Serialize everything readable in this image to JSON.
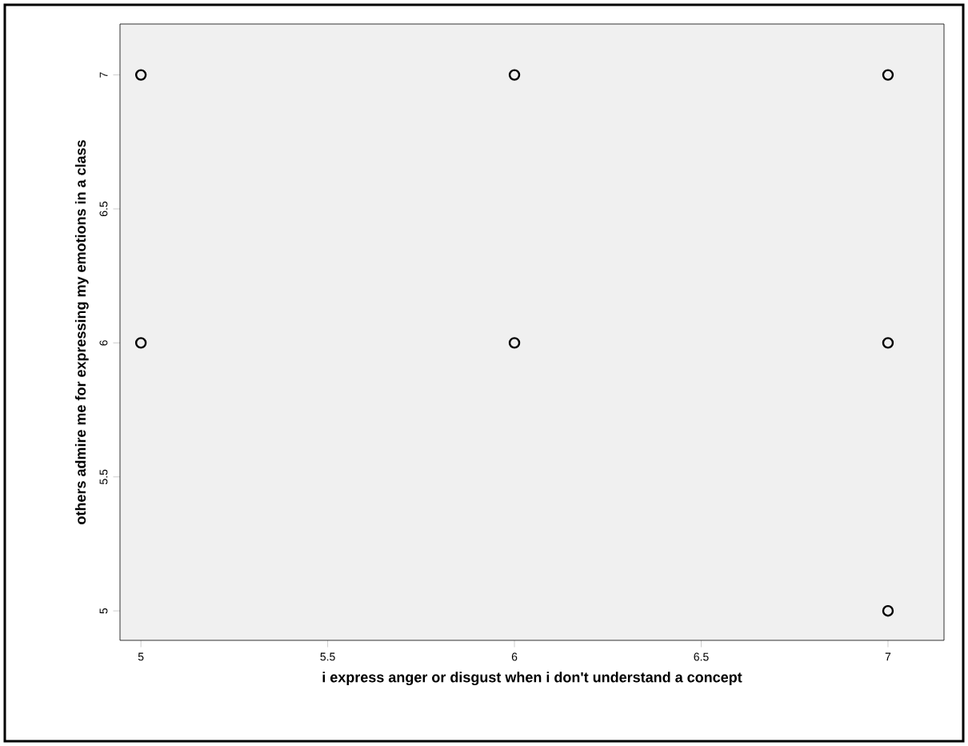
{
  "chart_data": {
    "type": "scatter",
    "xlabel": "i express anger or disgust when i don't understand a concept",
    "ylabel": "others admire me for expressing my emotions in a class",
    "x": [
      5,
      6,
      7,
      5,
      6,
      7,
      7
    ],
    "values": [
      7,
      7,
      7,
      6,
      6,
      6,
      5
    ],
    "color": "#000000",
    "marker": "circle",
    "xlim": [
      4.944,
      7.15
    ],
    "ylim": [
      4.89,
      7.19
    ],
    "xticks": [
      5,
      5.5,
      6,
      6.5,
      7
    ],
    "yticks": [
      5,
      5.5,
      6,
      6.5,
      7
    ],
    "grid": false
  }
}
